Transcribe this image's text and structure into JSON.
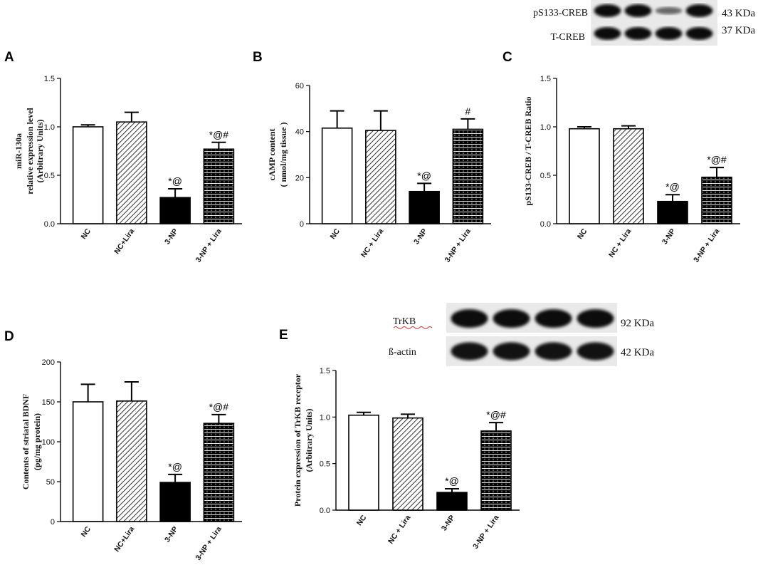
{
  "chart_data": [
    {
      "panel": "A",
      "type": "bar",
      "categories": [
        "NC",
        "NC+Lira",
        "3-NP",
        "3-NP + Lira"
      ],
      "values": [
        1.0,
        1.05,
        0.27,
        0.77
      ],
      "errors": [
        0.02,
        0.1,
        0.09,
        0.07
      ],
      "annotations": [
        "",
        "",
        "*@",
        "*@#"
      ],
      "ylabel_lines": [
        "miR-130a",
        "relative expression level",
        "(Arbitrary Units)"
      ],
      "ylim": [
        0,
        1.5
      ],
      "yticks": [
        0.0,
        0.5,
        1.0,
        1.5
      ],
      "ytick_labels": [
        "0.0",
        "0.5",
        "1.0",
        "1.5"
      ]
    },
    {
      "panel": "B",
      "type": "bar",
      "categories": [
        "NC",
        "NC + Lira",
        "3-NP",
        "3-NP + Lira"
      ],
      "values": [
        41.5,
        40.5,
        14,
        41
      ],
      "errors": [
        7.5,
        8.5,
        3.5,
        4.5
      ],
      "annotations": [
        "",
        "",
        "*@",
        "#"
      ],
      "ylabel_lines": [
        "cAMP content",
        "( nmol/mg tissue )"
      ],
      "ylim": [
        0,
        60
      ],
      "yticks": [
        0,
        20,
        40,
        60
      ],
      "ytick_labels": [
        "0",
        "20",
        "40",
        "60"
      ]
    },
    {
      "panel": "C",
      "type": "bar",
      "categories": [
        "NC",
        "NC + Lira",
        "3-NP",
        "3-NP + Lira"
      ],
      "values": [
        0.98,
        0.98,
        0.23,
        0.48
      ],
      "errors": [
        0.02,
        0.03,
        0.07,
        0.1
      ],
      "annotations": [
        "",
        "",
        "*@",
        "*@#"
      ],
      "ylabel_lines": [
        "pS133-CREB / T-CREB Ratio"
      ],
      "ylim": [
        0,
        1.5
      ],
      "yticks": [
        0.0,
        0.5,
        1.0,
        1.5
      ],
      "ytick_labels": [
        "0.0",
        "0.5",
        "1.0",
        "1.5"
      ]
    },
    {
      "panel": "D",
      "type": "bar",
      "categories": [
        "NC",
        "NC+Lira",
        "3-NP",
        "3-NP + Lira"
      ],
      "values": [
        150,
        151,
        49,
        123
      ],
      "errors": [
        22,
        24,
        10,
        11
      ],
      "annotations": [
        "",
        "",
        "*@",
        "*@#"
      ],
      "ylabel_lines": [
        "Contents of striatal BDNF",
        "(pg/mg protein)"
      ],
      "ylim": [
        0,
        200
      ],
      "yticks": [
        0,
        50,
        100,
        150,
        200
      ],
      "ytick_labels": [
        "0",
        "50",
        "100",
        "150",
        "200"
      ]
    },
    {
      "panel": "E",
      "type": "bar",
      "categories": [
        "NC",
        "NC + Lira",
        "3-NP",
        "3-NP + Lira"
      ],
      "values": [
        1.02,
        0.99,
        0.19,
        0.85
      ],
      "errors": [
        0.03,
        0.04,
        0.04,
        0.09
      ],
      "annotations": [
        "",
        "",
        "*@",
        "*@#"
      ],
      "ylabel_lines": [
        "Protein expression of TrKB receptor",
        "(Arbitrary Units)"
      ],
      "ylim": [
        0,
        1.5
      ],
      "yticks": [
        0.0,
        0.5,
        1.0,
        1.5
      ],
      "ytick_labels": [
        "0.0",
        "0.5",
        "1.0",
        "1.5"
      ]
    }
  ],
  "blots": {
    "creb": {
      "rows": [
        {
          "label": "pS133-CREB",
          "kda": "43 KDa",
          "intensities": [
            1.0,
            1.0,
            0.35,
            1.0
          ]
        },
        {
          "label": "T-CREB",
          "kda": "37 KDa",
          "intensities": [
            1.0,
            1.0,
            1.0,
            1.0
          ]
        }
      ]
    },
    "trkb": {
      "rows": [
        {
          "label": "TrKB",
          "kda": "92 KDa",
          "intensities": [
            1.0,
            1.0,
            1.0,
            1.0
          ]
        },
        {
          "label": "ß-actin",
          "kda": "42 KDa",
          "intensities": [
            0.95,
            0.95,
            0.95,
            0.95
          ]
        }
      ]
    }
  },
  "colors": {
    "bar_fill_solid": "#000000",
    "bar_stroke": "#000000",
    "background": "#ffffff"
  }
}
